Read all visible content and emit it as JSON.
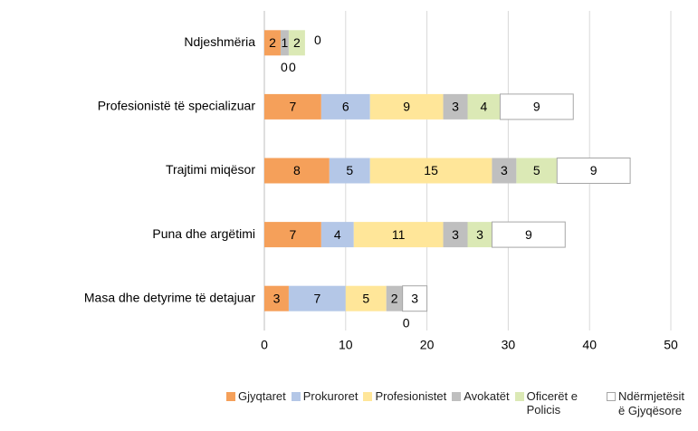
{
  "chart_data": {
    "type": "bar",
    "orientation": "horizontal",
    "stacked": true,
    "categories": [
      "Ndjeshmëria",
      "Profesionistë të specializuar",
      "Trajtimi miqësor",
      "Puna dhe argëtimi",
      "Masa dhe detyrime të detajuar"
    ],
    "series": [
      {
        "name": "Gjyqtaret",
        "color": "#f5a05a",
        "values": [
          2,
          7,
          8,
          7,
          3
        ]
      },
      {
        "name": "Prokuroret",
        "color": "#b4c7e7",
        "values": [
          0,
          6,
          5,
          4,
          7
        ]
      },
      {
        "name": "Profesionistet",
        "color": "#ffe699",
        "values": [
          0,
          9,
          15,
          11,
          5
        ]
      },
      {
        "name": "Avokatët",
        "color": "#bfbfbf",
        "values": [
          1,
          3,
          3,
          3,
          2
        ]
      },
      {
        "name": "Oficerët e Policis",
        "color": "#dbe9b5",
        "values": [
          2,
          4,
          5,
          3,
          0
        ]
      },
      {
        "name": "Ndërmjetësit ë Gjyqësore",
        "color": "#ffffff",
        "values": [
          0,
          9,
          9,
          9,
          3
        ]
      }
    ],
    "xlim": [
      0,
      50
    ],
    "xticks": [
      0,
      10,
      20,
      30,
      40,
      50
    ],
    "grid": true,
    "legend": "bottom"
  }
}
